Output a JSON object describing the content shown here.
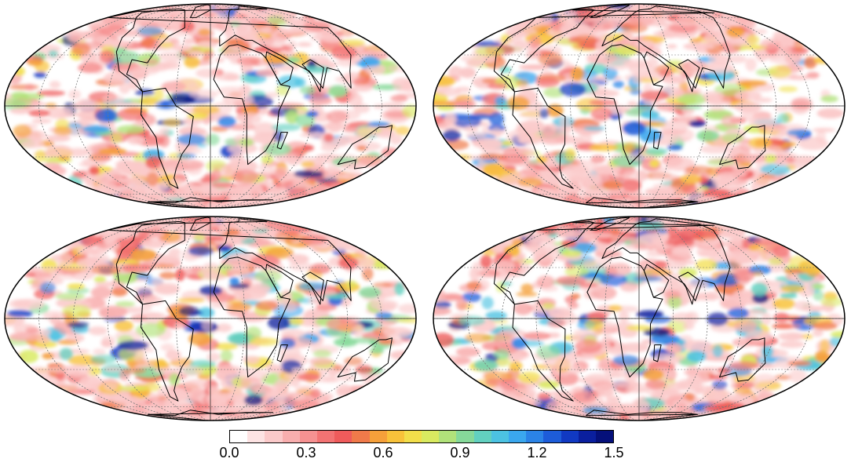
{
  "map": {
    "projection": "Mollweide",
    "panels": [
      {
        "id": "map-top-left",
        "center": "Atlantic"
      },
      {
        "id": "map-top-right",
        "center": "Europe/Africa"
      },
      {
        "id": "map-bottom-left",
        "center": "Atlantic"
      },
      {
        "id": "map-bottom-right",
        "center": "Europe/Africa"
      }
    ]
  },
  "colorbar": {
    "min": 0.0,
    "max": 1.5,
    "ticks": [
      "0.0",
      "0.3",
      "0.6",
      "0.9",
      "1.2",
      "1.5"
    ],
    "colors": [
      "#ffffff",
      "#fde3e3",
      "#fbcaca",
      "#f8aeae",
      "#f69191",
      "#f37373",
      "#ef5b5b",
      "#f07a4a",
      "#f5a03a",
      "#f8c23a",
      "#f2de4a",
      "#d9ea60",
      "#b1e27a",
      "#86d99a",
      "#62d0c0",
      "#4cc2e2",
      "#3aa7ee",
      "#2b83e6",
      "#1d5cd9",
      "#1139c2",
      "#0a1f9e",
      "#05107a"
    ]
  }
}
